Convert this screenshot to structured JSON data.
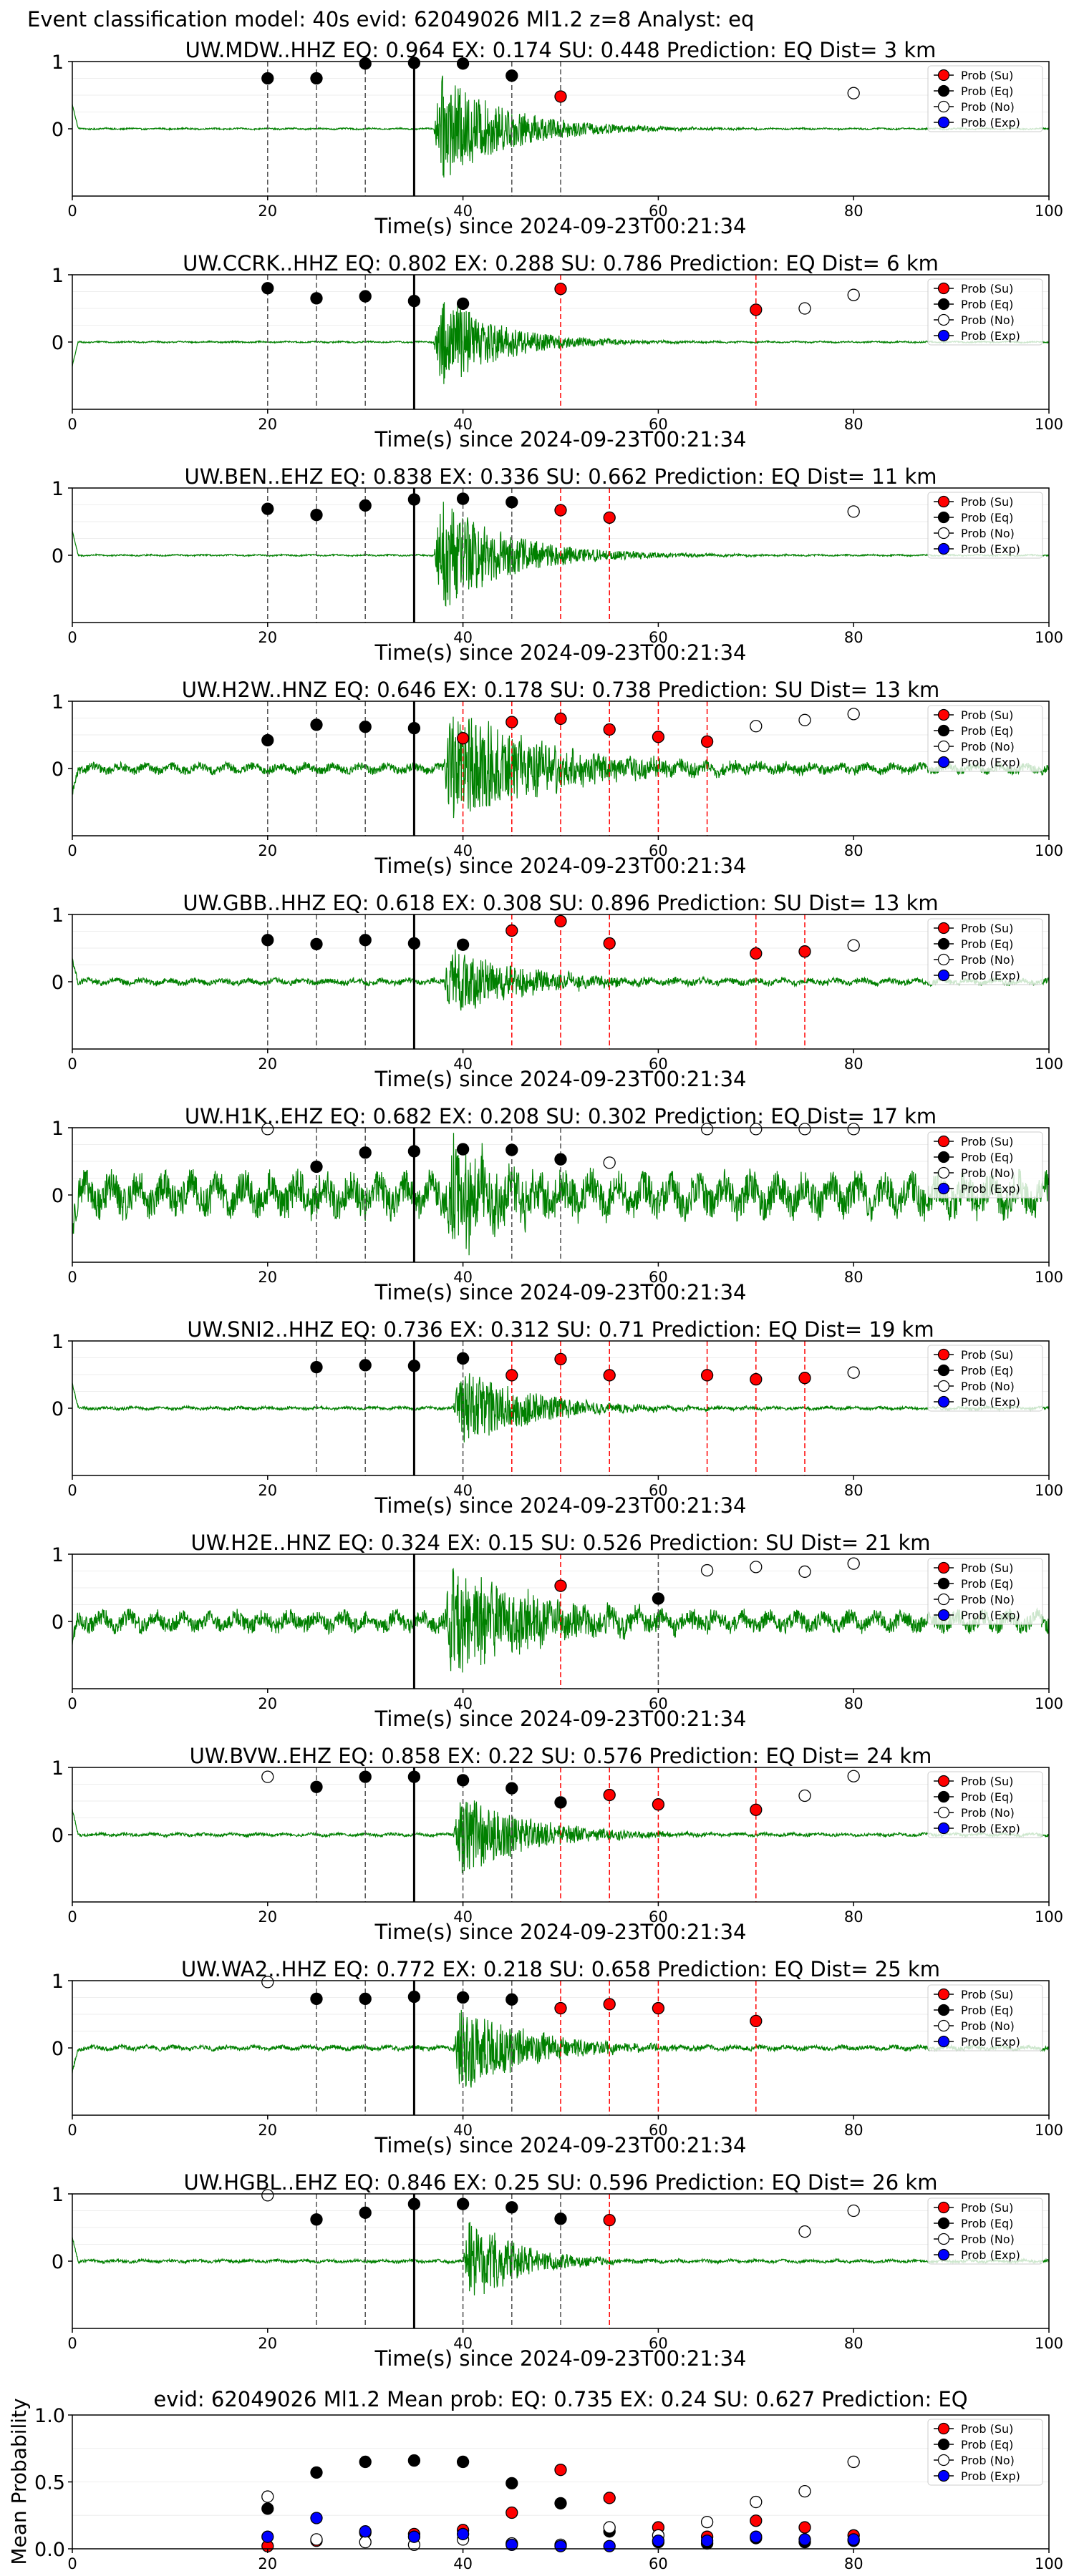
{
  "header": {
    "title": "Event classification model: 40s evid: 62049026 Ml1.2 z=8 Analyst: eq"
  },
  "legend_labels": [
    "Prob (Su)",
    "Prob (Eq)",
    "Prob (No)",
    "Prob (Exp)"
  ],
  "colors": {
    "trace": "#008000",
    "su": "#ff0000",
    "eq": "#000000",
    "no": "#ffffff",
    "exp": "#0000ff",
    "eq_line": "#505050",
    "su_line": "#ff0000",
    "origin_line": "#000000"
  },
  "x_ticks": [
    "0",
    "20",
    "40",
    "60",
    "80",
    "100"
  ],
  "y_ticks_trace": [
    "1",
    "0"
  ],
  "origin_time_s": 35,
  "chart_data": [
    {
      "type": "line",
      "title": "UW.MDW..HHZ   EQ: 0.964  EX: 0.174  SU: 0.448   Prediction: EQ    Dist= 3 km",
      "xlabel": "Time(s) since 2024-09-23T00:21:34",
      "xlim": [
        0,
        100
      ],
      "ylim": [
        -1,
        1
      ],
      "trace": {
        "amp": 0.9,
        "noise": 0.01,
        "onset": 37,
        "decay": 7
      },
      "eq_lines": [
        20,
        25,
        30,
        45,
        50
      ],
      "su_lines": [],
      "points": {
        "su": [
          [
            50,
            0.48
          ]
        ],
        "eq": [
          [
            20,
            0.75
          ],
          [
            25,
            0.75
          ],
          [
            30,
            0.97
          ],
          [
            35,
            0.98
          ],
          [
            40,
            0.97
          ],
          [
            45,
            0.79
          ]
        ],
        "no": [
          [
            80,
            0.53
          ]
        ],
        "exp": []
      }
    },
    {
      "type": "line",
      "title": "UW.CCRK..HHZ   EQ: 0.802  EX: 0.288  SU: 0.786   Prediction: EQ    Dist= 6 km",
      "xlabel": "Time(s) since 2024-09-23T00:21:34",
      "xlim": [
        0,
        100
      ],
      "ylim": [
        -1,
        1
      ],
      "trace": {
        "amp": 0.85,
        "noise": 0.01,
        "onset": 37,
        "decay": 6
      },
      "eq_lines": [
        20,
        25,
        30
      ],
      "su_lines": [
        50,
        70
      ],
      "points": {
        "su": [
          [
            50,
            0.79
          ],
          [
            70,
            0.48
          ]
        ],
        "eq": [
          [
            20,
            0.8
          ],
          [
            25,
            0.65
          ],
          [
            30,
            0.68
          ],
          [
            35,
            0.61
          ],
          [
            40,
            0.57
          ]
        ],
        "no": [
          [
            75,
            0.5
          ],
          [
            80,
            0.7
          ]
        ],
        "exp": []
      }
    },
    {
      "type": "line",
      "title": "UW.BEN..EHZ   EQ: 0.838  EX: 0.336  SU: 0.662   Prediction: EQ    Dist= 11 km",
      "xlabel": "Time(s) since 2024-09-23T00:21:34",
      "xlim": [
        0,
        100
      ],
      "ylim": [
        -1,
        1
      ],
      "trace": {
        "amp": 0.95,
        "noise": 0.01,
        "onset": 37,
        "decay": 7
      },
      "eq_lines": [
        20,
        25,
        30,
        40,
        45
      ],
      "su_lines": [
        50,
        55
      ],
      "points": {
        "su": [
          [
            50,
            0.67
          ],
          [
            55,
            0.56
          ]
        ],
        "eq": [
          [
            20,
            0.69
          ],
          [
            25,
            0.6
          ],
          [
            30,
            0.74
          ],
          [
            35,
            0.83
          ],
          [
            40,
            0.84
          ],
          [
            45,
            0.79
          ]
        ],
        "no": [
          [
            80,
            0.65
          ]
        ],
        "exp": []
      }
    },
    {
      "type": "line",
      "title": "UW.H2W..HNZ   EQ: 0.646  EX: 0.178  SU: 0.738   Prediction: SU    Dist= 13 km",
      "xlabel": "Time(s) since 2024-09-23T00:21:34",
      "xlim": [
        0,
        100
      ],
      "ylim": [
        -1,
        1
      ],
      "trace": {
        "amp": 1.0,
        "noise": 0.06,
        "onset": 38,
        "decay": 10
      },
      "eq_lines": [
        20,
        25,
        30
      ],
      "su_lines": [
        40,
        45,
        50,
        55,
        60,
        65
      ],
      "points": {
        "su": [
          [
            40,
            0.45
          ],
          [
            45,
            0.69
          ],
          [
            50,
            0.74
          ],
          [
            55,
            0.58
          ],
          [
            60,
            0.47
          ],
          [
            65,
            0.4
          ]
        ],
        "eq": [
          [
            20,
            0.42
          ],
          [
            25,
            0.65
          ],
          [
            30,
            0.62
          ],
          [
            35,
            0.6
          ]
        ],
        "no": [
          [
            70,
            0.63
          ],
          [
            75,
            0.72
          ],
          [
            80,
            0.81
          ]
        ],
        "exp": []
      }
    },
    {
      "type": "line",
      "title": "UW.GBB..HHZ   EQ: 0.618  EX: 0.308  SU: 0.896   Prediction: SU    Dist= 13 km",
      "xlabel": "Time(s) since 2024-09-23T00:21:34",
      "xlim": [
        0,
        100
      ],
      "ylim": [
        -1,
        1
      ],
      "trace": {
        "amp": 0.55,
        "noise": 0.04,
        "onset": 38,
        "decay": 8
      },
      "eq_lines": [
        20,
        25,
        30
      ],
      "su_lines": [
        45,
        50,
        55,
        70,
        75
      ],
      "points": {
        "su": [
          [
            45,
            0.76
          ],
          [
            50,
            0.9
          ],
          [
            55,
            0.57
          ],
          [
            70,
            0.42
          ],
          [
            75,
            0.45
          ]
        ],
        "eq": [
          [
            20,
            0.62
          ],
          [
            25,
            0.56
          ],
          [
            30,
            0.62
          ],
          [
            35,
            0.57
          ],
          [
            40,
            0.55
          ]
        ],
        "no": [
          [
            80,
            0.54
          ]
        ],
        "exp": []
      }
    },
    {
      "type": "line",
      "title": "UW.H1K..EHZ   EQ: 0.682  EX: 0.208  SU: 0.302   Prediction: EQ    Dist= 17 km",
      "xlabel": "Time(s) since 2024-09-23T00:21:34",
      "xlim": [
        0,
        100
      ],
      "ylim": [
        -1,
        1
      ],
      "trace": {
        "amp": 0.9,
        "noise": 0.25,
        "onset": 38,
        "decay": 6
      },
      "eq_lines": [
        25,
        30,
        45,
        50
      ],
      "su_lines": [],
      "points": {
        "su": [],
        "eq": [
          [
            25,
            0.42
          ],
          [
            30,
            0.63
          ],
          [
            35,
            0.65
          ],
          [
            40,
            0.68
          ],
          [
            45,
            0.67
          ],
          [
            50,
            0.53
          ]
        ],
        "no": [
          [
            20,
            0.98
          ],
          [
            55,
            0.48
          ],
          [
            65,
            0.98
          ],
          [
            70,
            0.98
          ],
          [
            75,
            0.98
          ],
          [
            80,
            0.98
          ]
        ],
        "exp": []
      }
    },
    {
      "type": "line",
      "title": "UW.SNI2..HHZ   EQ: 0.736  EX: 0.312  SU: 0.71   Prediction: EQ    Dist= 19 km",
      "xlabel": "Time(s) since 2024-09-23T00:21:34",
      "xlim": [
        0,
        100
      ],
      "ylim": [
        -1,
        1
      ],
      "trace": {
        "amp": 0.7,
        "noise": 0.02,
        "onset": 39,
        "decay": 7
      },
      "eq_lines": [
        25,
        30,
        40
      ],
      "su_lines": [
        45,
        50,
        55,
        65,
        70,
        75
      ],
      "points": {
        "su": [
          [
            45,
            0.49
          ],
          [
            50,
            0.73
          ],
          [
            55,
            0.49
          ],
          [
            65,
            0.49
          ],
          [
            70,
            0.43
          ],
          [
            75,
            0.45
          ]
        ],
        "eq": [
          [
            25,
            0.61
          ],
          [
            30,
            0.64
          ],
          [
            35,
            0.63
          ],
          [
            40,
            0.74
          ]
        ],
        "no": [
          [
            80,
            0.53
          ]
        ],
        "exp": []
      }
    },
    {
      "type": "line",
      "title": "UW.H2E..HNZ   EQ: 0.324  EX: 0.15  SU: 0.526   Prediction: SU    Dist= 21 km",
      "xlabel": "Time(s) since 2024-09-23T00:21:34",
      "xlim": [
        0,
        100
      ],
      "ylim": [
        -1,
        1
      ],
      "trace": {
        "amp": 0.95,
        "noise": 0.12,
        "onset": 38,
        "decay": 9
      },
      "eq_lines": [
        60
      ],
      "su_lines": [
        50
      ],
      "points": {
        "su": [
          [
            50,
            0.53
          ]
        ],
        "eq": [
          [
            60,
            0.34
          ]
        ],
        "no": [
          [
            65,
            0.76
          ],
          [
            70,
            0.81
          ],
          [
            75,
            0.74
          ],
          [
            80,
            0.86
          ]
        ],
        "exp": []
      }
    },
    {
      "type": "line",
      "title": "UW.BVW..EHZ   EQ: 0.858  EX: 0.22  SU: 0.576   Prediction: EQ    Dist= 24 km",
      "xlabel": "Time(s) since 2024-09-23T00:21:34",
      "xlim": [
        0,
        100
      ],
      "ylim": [
        -1,
        1
      ],
      "trace": {
        "amp": 0.7,
        "noise": 0.02,
        "onset": 39,
        "decay": 7
      },
      "eq_lines": [
        25,
        30,
        40,
        45
      ],
      "su_lines": [
        50,
        55,
        60,
        70
      ],
      "points": {
        "su": [
          [
            55,
            0.59
          ],
          [
            60,
            0.45
          ],
          [
            70,
            0.37
          ]
        ],
        "eq": [
          [
            25,
            0.71
          ],
          [
            30,
            0.86
          ],
          [
            35,
            0.86
          ],
          [
            40,
            0.81
          ],
          [
            45,
            0.69
          ],
          [
            50,
            0.48
          ]
        ],
        "no": [
          [
            20,
            0.86
          ],
          [
            75,
            0.58
          ],
          [
            80,
            0.87
          ]
        ],
        "exp": []
      }
    },
    {
      "type": "line",
      "title": "UW.WA2..HHZ   EQ: 0.772  EX: 0.218  SU: 0.658   Prediction: EQ    Dist= 25 km",
      "xlabel": "Time(s) since 2024-09-23T00:21:34",
      "xlim": [
        0,
        100
      ],
      "ylim": [
        -1,
        1
      ],
      "trace": {
        "amp": 0.75,
        "noise": 0.03,
        "onset": 39,
        "decay": 7
      },
      "eq_lines": [
        25,
        30,
        40,
        45
      ],
      "su_lines": [
        50,
        55,
        60,
        70
      ],
      "points": {
        "su": [
          [
            50,
            0.59
          ],
          [
            55,
            0.65
          ],
          [
            60,
            0.59
          ],
          [
            70,
            0.4
          ]
        ],
        "eq": [
          [
            25,
            0.73
          ],
          [
            30,
            0.73
          ],
          [
            35,
            0.76
          ],
          [
            40,
            0.75
          ],
          [
            45,
            0.72
          ]
        ],
        "no": [
          [
            20,
            0.98
          ]
        ],
        "exp": []
      }
    },
    {
      "type": "line",
      "title": "UW.HGBL..EHZ   EQ: 0.846  EX: 0.25  SU: 0.596   Prediction: EQ    Dist= 26 km",
      "xlabel": "Time(s) since 2024-09-23T00:21:34",
      "xlim": [
        0,
        100
      ],
      "ylim": [
        -1,
        1
      ],
      "trace": {
        "amp": 0.8,
        "noise": 0.02,
        "onset": 40,
        "decay": 5
      },
      "eq_lines": [
        25,
        30,
        40,
        45,
        50
      ],
      "su_lines": [
        55
      ],
      "points": {
        "su": [
          [
            55,
            0.61
          ]
        ],
        "eq": [
          [
            25,
            0.62
          ],
          [
            30,
            0.72
          ],
          [
            35,
            0.85
          ],
          [
            40,
            0.85
          ],
          [
            45,
            0.8
          ],
          [
            50,
            0.63
          ]
        ],
        "no": [
          [
            20,
            0.98
          ],
          [
            75,
            0.44
          ],
          [
            80,
            0.75
          ]
        ],
        "exp": []
      }
    },
    {
      "type": "scatter",
      "title": "evid: 62049026  Ml1.2   Mean prob:   EQ: 0.735  EX: 0.24  SU: 0.627   Prediction: EQ",
      "ylabel": "Mean Probability",
      "xlim": [
        0,
        100
      ],
      "ylim": [
        0,
        1
      ],
      "y_ticks": [
        "1.0",
        "0.5",
        "0.0"
      ],
      "points": {
        "su": [
          [
            20,
            0.02
          ],
          [
            25,
            0.06
          ],
          [
            30,
            0.12
          ],
          [
            35,
            0.11
          ],
          [
            40,
            0.14
          ],
          [
            45,
            0.27
          ],
          [
            50,
            0.59
          ],
          [
            55,
            0.38
          ],
          [
            60,
            0.16
          ],
          [
            65,
            0.09
          ],
          [
            70,
            0.21
          ],
          [
            75,
            0.16
          ],
          [
            80,
            0.1
          ]
        ],
        "eq": [
          [
            20,
            0.3
          ],
          [
            25,
            0.57
          ],
          [
            30,
            0.65
          ],
          [
            35,
            0.66
          ],
          [
            40,
            0.65
          ],
          [
            45,
            0.49
          ],
          [
            50,
            0.34
          ],
          [
            55,
            0.13
          ],
          [
            60,
            0.05
          ],
          [
            65,
            0.04
          ],
          [
            70,
            0.08
          ],
          [
            75,
            0.05
          ],
          [
            80,
            0.06
          ]
        ],
        "no": [
          [
            20,
            0.39
          ],
          [
            25,
            0.07
          ],
          [
            30,
            0.05
          ],
          [
            35,
            0.03
          ],
          [
            40,
            0.07
          ],
          [
            45,
            0.04
          ],
          [
            50,
            0.03
          ],
          [
            55,
            0.16
          ],
          [
            60,
            0.1
          ],
          [
            65,
            0.2
          ],
          [
            70,
            0.35
          ],
          [
            75,
            0.43
          ],
          [
            80,
            0.65
          ]
        ],
        "exp": [
          [
            20,
            0.09
          ],
          [
            25,
            0.23
          ],
          [
            30,
            0.13
          ],
          [
            35,
            0.09
          ],
          [
            40,
            0.11
          ],
          [
            45,
            0.03
          ],
          [
            50,
            0.02
          ],
          [
            55,
            0.02
          ],
          [
            60,
            0.06
          ],
          [
            65,
            0.06
          ],
          [
            70,
            0.09
          ],
          [
            75,
            0.07
          ],
          [
            80,
            0.07
          ]
        ]
      }
    }
  ]
}
